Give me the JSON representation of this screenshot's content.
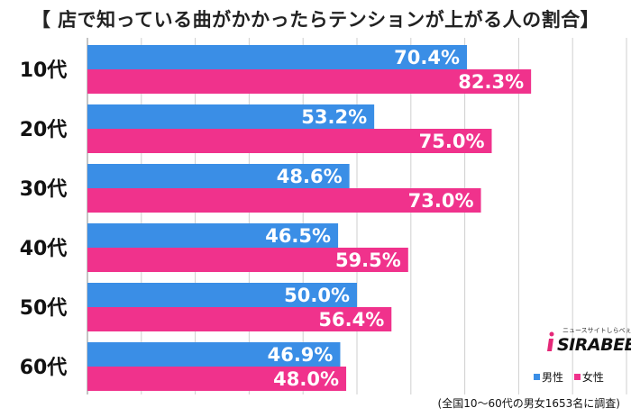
{
  "title": "【 店で知っている曲がかかったらテンションが上がる人の割合】",
  "colors": {
    "male": "#3a8ee6",
    "female": "#f0328c",
    "grid": "#cfcfcf"
  },
  "chart_data": {
    "type": "bar",
    "orientation": "horizontal",
    "title": "【 店で知っている曲がかかったらテンションが上がる人の割合】",
    "categories": [
      "10代",
      "20代",
      "30代",
      "40代",
      "50代",
      "60代"
    ],
    "value_labels": {
      "male": [
        "70.4%",
        "53.2%",
        "48.6%",
        "46.5%",
        "50.0%",
        "46.9%"
      ],
      "female": [
        "82.3%",
        "75.0%",
        "73.0%",
        "59.5%",
        "56.4%",
        "48.0%"
      ]
    },
    "series": [
      {
        "name": "男性",
        "color": "#3a8ee6",
        "values": [
          70.4,
          53.2,
          48.6,
          46.5,
          50.0,
          46.9
        ]
      },
      {
        "name": "女性",
        "color": "#f0328c",
        "values": [
          82.3,
          75.0,
          73.0,
          59.5,
          56.4,
          48.0
        ]
      }
    ],
    "xlim": [
      0,
      100
    ],
    "grid": true,
    "legend_position": "bottom-right"
  },
  "legend": {
    "male": "男性",
    "female": "女性"
  },
  "logo": {
    "tagline": "ニュースサイトしらべぇ",
    "name": "SIRABEE"
  },
  "footnote": "(全国10～60代の男女1653名に調査)"
}
